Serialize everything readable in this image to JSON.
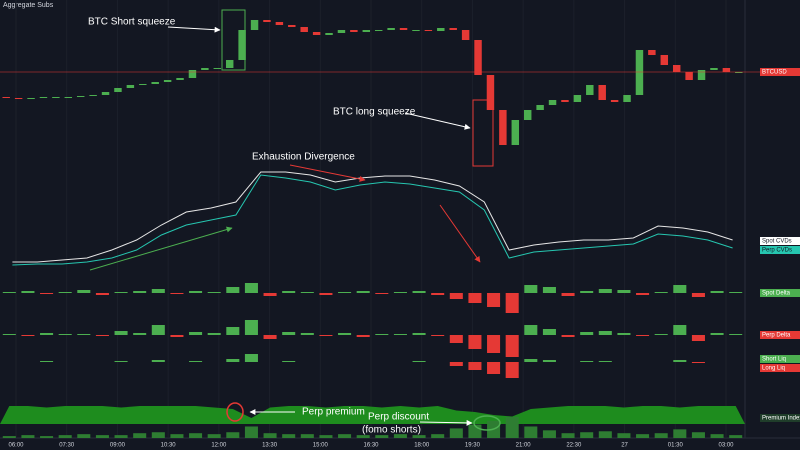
{
  "chart_data": {
    "type": "candlestick",
    "title": "Aggregate Subs",
    "symbol": "BTCUSD",
    "up_color": "#4caf50",
    "down_color": "#e53935",
    "grid": true,
    "x_labels": [
      "06:00",
      "07:30",
      "09:00",
      "10:30",
      "12:00",
      "13:30",
      "15:00",
      "16:30",
      "18:00",
      "19:30",
      "21:00",
      "22:30",
      "27",
      "01:30",
      "03:00"
    ],
    "open": [
      2846,
      2844,
      2842,
      2844,
      2846,
      2846,
      2846,
      2848,
      2850,
      2856,
      2864,
      2870,
      2872,
      2876,
      2880,
      2884,
      2900,
      2904,
      2904,
      2920,
      2980,
      3000,
      2996,
      2990,
      2986,
      2976,
      2970,
      2974,
      2980,
      2976,
      2980,
      2980,
      2984,
      2980,
      2980,
      2978,
      2984,
      2980,
      2960,
      2890,
      2820,
      2750,
      2800,
      2820,
      2830,
      2840,
      2836,
      2850,
      2870,
      2840,
      2836,
      2850,
      2940,
      2930,
      2910,
      2896,
      2880,
      2900,
      2904,
      2896
    ],
    "close": [
      2844,
      2842,
      2844,
      2846,
      2846,
      2846,
      2848,
      2850,
      2856,
      2864,
      2870,
      2872,
      2876,
      2880,
      2884,
      2900,
      2904,
      2904,
      2920,
      2980,
      3000,
      2996,
      2990,
      2986,
      2976,
      2970,
      2974,
      2980,
      2976,
      2980,
      2980,
      2984,
      2980,
      2980,
      2978,
      2984,
      2980,
      2960,
      2890,
      2820,
      2750,
      2800,
      2820,
      2830,
      2840,
      2836,
      2850,
      2870,
      2840,
      2836,
      2850,
      2940,
      2930,
      2910,
      2896,
      2880,
      2900,
      2904,
      2896,
      2896
    ],
    "ylim": [
      2700,
      3020
    ],
    "panels": [
      {
        "type": "line",
        "ylim": [
          0,
          100
        ],
        "series": [
          {
            "name": "Spot CVDs",
            "color": "#e6e6e6",
            "values": [
              8,
              8,
              10,
              12,
              20,
              30,
              45,
              58,
              62,
              68,
              98,
              98,
              95,
              88,
              92,
              94,
              94,
              90,
              84,
              68,
              20,
              25,
              28,
              30,
              30,
              32,
              44,
              42,
              38,
              30
            ]
          },
          {
            "name": "Perp CVDs",
            "color": "#26c6b0",
            "values": [
              5,
              6,
              6,
              8,
              12,
              20,
              35,
              45,
              50,
              55,
              95,
              92,
              88,
              80,
              85,
              88,
              86,
              82,
              78,
              60,
              12,
              18,
              20,
              22,
              24,
              26,
              36,
              34,
              30,
              22
            ]
          }
        ]
      },
      {
        "type": "bar",
        "name": "Spot Delta",
        "color": "#4caf50",
        "negative_color": "#e53935",
        "ylim": [
          -25,
          25
        ],
        "values": [
          1,
          2,
          -1,
          1,
          3,
          -2,
          1,
          2,
          4,
          -1,
          2,
          1,
          6,
          10,
          -3,
          2,
          1,
          -2,
          1,
          2,
          -1,
          1,
          2,
          -2,
          -6,
          -10,
          -14,
          -20,
          8,
          6,
          -3,
          2,
          4,
          3,
          -2,
          1,
          8,
          -4,
          2,
          1
        ]
      },
      {
        "type": "bar",
        "name": "Perp Delta",
        "color": "#4caf50",
        "negative_color": "#e53935",
        "ylim": [
          -25,
          25
        ],
        "values": [
          1,
          -1,
          2,
          1,
          1,
          -1,
          4,
          2,
          10,
          -2,
          3,
          2,
          8,
          15,
          -4,
          3,
          2,
          -1,
          2,
          -2,
          1,
          1,
          2,
          -1,
          -8,
          -14,
          -18,
          -22,
          10,
          6,
          -2,
          3,
          4,
          2,
          -1,
          1,
          10,
          -6,
          2,
          1
        ]
      },
      {
        "type": "liq",
        "ylim": [
          -20,
          20
        ],
        "series": [
          {
            "name": "Short Liq",
            "color": "#4caf50",
            "values": [
              0,
              0,
              1,
              0,
              0,
              0,
              1,
              0,
              2,
              0,
              1,
              0,
              3,
              8,
              0,
              1,
              0,
              0,
              0,
              0,
              0,
              0,
              1,
              0,
              0,
              0,
              0,
              0,
              3,
              2,
              0,
              1,
              1,
              0,
              0,
              0,
              2,
              0,
              0,
              0
            ]
          },
          {
            "name": "Long Liq",
            "color": "#e53935",
            "values": [
              0,
              0,
              0,
              0,
              0,
              0,
              0,
              0,
              0,
              0,
              0,
              0,
              0,
              0,
              0,
              0,
              0,
              0,
              0,
              0,
              0,
              0,
              0,
              0,
              4,
              8,
              12,
              16,
              0,
              0,
              0,
              0,
              0,
              0,
              0,
              0,
              0,
              1,
              0,
              0
            ]
          }
        ]
      },
      {
        "type": "area",
        "name": "Premium Index",
        "color": "#1e8c1e",
        "ylim": [
          0,
          16
        ],
        "values": [
          12,
          12,
          11,
          12,
          12,
          12,
          11,
          12,
          12,
          12,
          12,
          11,
          10,
          4,
          11,
          12,
          12,
          11,
          12,
          12,
          11,
          12,
          11,
          12,
          9,
          8,
          6,
          5,
          10,
          11,
          12,
          12,
          12,
          11,
          12,
          12,
          11,
          12,
          12,
          12
        ]
      },
      {
        "type": "bar",
        "color": "#2e7d32",
        "negative_color": "#c62828",
        "ylim": [
          0,
          25
        ],
        "values": [
          2,
          3,
          2,
          3,
          4,
          3,
          3,
          5,
          6,
          4,
          5,
          4,
          6,
          12,
          5,
          4,
          4,
          3,
          4,
          3,
          3,
          4,
          3,
          4,
          10,
          14,
          18,
          22,
          12,
          8,
          5,
          6,
          7,
          5,
          4,
          5,
          9,
          6,
          4,
          3
        ]
      }
    ],
    "annotations": [
      "BTC Short squeeze",
      "BTC long squeeze",
      "Exhaustion Divergence",
      "Perp premium",
      "Perp discount",
      "(fomo shorts)"
    ]
  }
}
